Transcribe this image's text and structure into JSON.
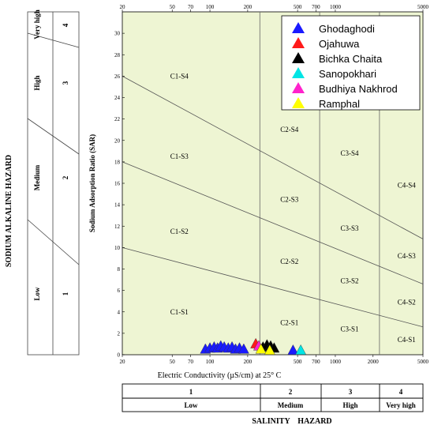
{
  "chart_data": {
    "type": "scatter",
    "x_axis": {
      "label": "Electric Conductivity (µS/cm) at 25° C",
      "scale": "log",
      "range": [
        20,
        5000
      ],
      "bottom_ticks": [
        20,
        50,
        70,
        100,
        200,
        500,
        700,
        1000,
        2000,
        5000
      ],
      "bottom_tick_labels": [
        "20",
        "50",
        "70",
        "100",
        "200",
        "500",
        "700",
        "1000",
        "2000",
        "5000"
      ],
      "top_ticks": [
        20,
        50,
        70,
        100,
        200,
        500,
        700,
        1000,
        5000
      ],
      "top_tick_labels": [
        "20",
        "50",
        "70",
        "100",
        "200",
        "500",
        "700",
        "1000",
        "5000"
      ]
    },
    "y_axis": {
      "label": "Sodium Adsorption Ratio (SAR)",
      "range": [
        0,
        32
      ],
      "ticks": [
        0,
        2,
        4,
        6,
        8,
        10,
        12,
        14,
        16,
        18,
        20,
        22,
        24,
        26,
        28,
        30
      ],
      "tick_labels": [
        "0",
        "2",
        "4",
        "6",
        "8",
        "10",
        "12",
        "14",
        "16",
        "18",
        "20",
        "22",
        "24",
        "26",
        "28",
        "30"
      ]
    },
    "salinity_boundaries": [
      250,
      750,
      2250
    ],
    "sodium_lines": [
      {
        "x": [
          20,
          5000
        ],
        "y": [
          26,
          10.8
        ]
      },
      {
        "x": [
          20,
          5000
        ],
        "y": [
          18,
          6.6
        ]
      },
      {
        "x": [
          20,
          5000
        ],
        "y": [
          10,
          2.6
        ]
      }
    ],
    "zone_labels": [
      {
        "label": "C1-S4",
        "x": 57,
        "y": 26
      },
      {
        "label": "C1-S3",
        "x": 57,
        "y": 18.5
      },
      {
        "label": "C1-S2",
        "x": 57,
        "y": 11.5
      },
      {
        "label": "C1-S1",
        "x": 57,
        "y": 4
      },
      {
        "label": "C2-S4",
        "x": 430,
        "y": 21
      },
      {
        "label": "C2-S3",
        "x": 430,
        "y": 14.5
      },
      {
        "label": "C2-S2",
        "x": 430,
        "y": 8.7
      },
      {
        "label": "C2-S1",
        "x": 430,
        "y": 3
      },
      {
        "label": "C3-S4",
        "x": 1300,
        "y": 18.8
      },
      {
        "label": "C3-S3",
        "x": 1300,
        "y": 11.8
      },
      {
        "label": "C3-S2",
        "x": 1300,
        "y": 6.9
      },
      {
        "label": "C3-S1",
        "x": 1300,
        "y": 2.4
      },
      {
        "label": "C4-S4",
        "x": 3700,
        "y": 15.8
      },
      {
        "label": "C4-S3",
        "x": 3700,
        "y": 9.2
      },
      {
        "label": "C4-S2",
        "x": 3700,
        "y": 4.9
      },
      {
        "label": "C4-S1",
        "x": 3700,
        "y": 1.4
      }
    ],
    "series": [
      {
        "name": "Ghodaghodi",
        "color": "#1a1aff",
        "points": [
          [
            92,
            0.3
          ],
          [
            100,
            0.4
          ],
          [
            108,
            0.5
          ],
          [
            115,
            0.4
          ],
          [
            122,
            0.6
          ],
          [
            130,
            0.5
          ],
          [
            140,
            0.4
          ],
          [
            150,
            0.5
          ],
          [
            160,
            0.3
          ],
          [
            172,
            0.4
          ],
          [
            186,
            0.3
          ],
          [
            460,
            0.2
          ]
        ]
      },
      {
        "name": "Ojahuwa",
        "color": "#ff1a1a",
        "points": [
          [
            232,
            0.8
          ]
        ]
      },
      {
        "name": "Bichka Chaita",
        "color": "#000000",
        "points": [
          [
            265,
            0.5
          ],
          [
            285,
            0.7
          ],
          [
            305,
            0.6
          ],
          [
            325,
            0.4
          ]
        ]
      },
      {
        "name": "Sanopokhari",
        "color": "#00e5e5",
        "points": [
          [
            530,
            0.2
          ]
        ]
      },
      {
        "name": "Budhiya Nakhrod",
        "color": "#ff22cc",
        "points": [
          [
            245,
            0.6
          ]
        ]
      },
      {
        "name": "Ramphal",
        "color": "#ffff00",
        "points": [
          [
            255,
            0.3
          ],
          [
            300,
            0.2
          ]
        ]
      }
    ],
    "legend_position": "top-right",
    "salinity_hazard": {
      "title": "SALINITY    HAZARD",
      "classes": [
        {
          "num": "1",
          "label": "Low"
        },
        {
          "num": "2",
          "label": "Medium"
        },
        {
          "num": "3",
          "label": "High"
        },
        {
          "num": "4",
          "label": "Very high"
        }
      ]
    },
    "sodium_hazard": {
      "title": "SODIUM     ALKALINE    HAZARD",
      "classes": [
        {
          "num": "1",
          "label": "Low"
        },
        {
          "num": "2",
          "label": "Medium"
        },
        {
          "num": "3",
          "label": "High"
        },
        {
          "num": "4",
          "label": "Very high"
        }
      ]
    },
    "colors": {
      "plot_background": "#eef5d3"
    }
  }
}
